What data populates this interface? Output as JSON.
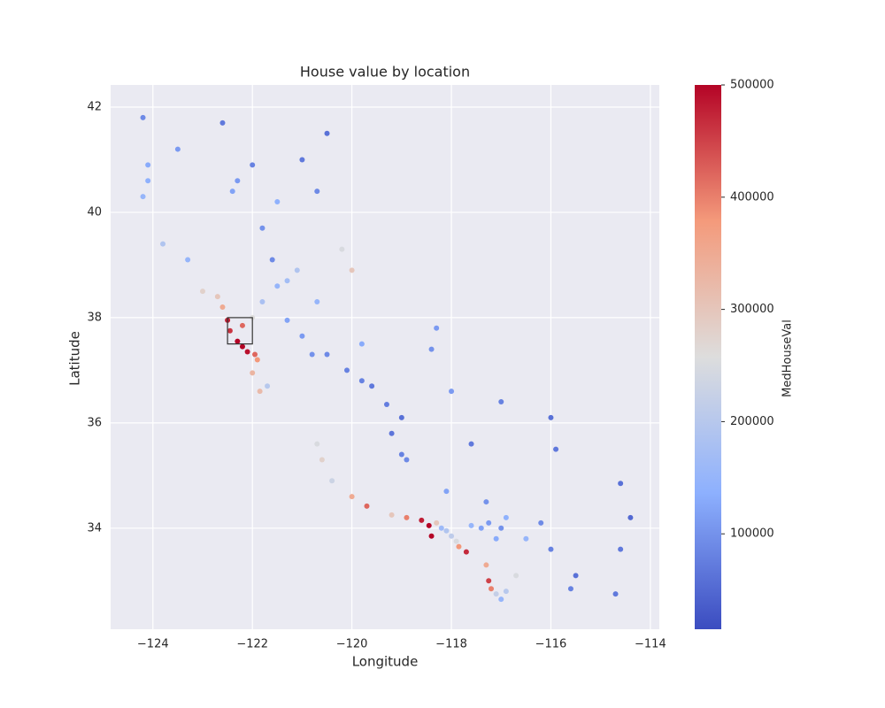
{
  "chart_data": {
    "type": "scatter",
    "title": "House value by location",
    "x_label": "Longitude",
    "y_label": "Latitude",
    "colorbar_label": "MedHouseVal",
    "colormap": "coolwarm",
    "grid": true,
    "xlim": [
      -124.85,
      -113.82
    ],
    "ylim": [
      32.08,
      42.42
    ],
    "xticks": [
      {
        "value": -124,
        "label": "−124"
      },
      {
        "value": -122,
        "label": "−122"
      },
      {
        "value": -120,
        "label": "−120"
      },
      {
        "value": -118,
        "label": "−118"
      },
      {
        "value": -116,
        "label": "−116"
      },
      {
        "value": -114,
        "label": "−114"
      }
    ],
    "yticks": [
      34,
      36,
      38,
      40,
      42
    ],
    "clim": [
      14999,
      500001
    ],
    "cticks": [
      100000,
      200000,
      300000,
      400000,
      500000
    ],
    "rectangle": {
      "x": [
        -122.5,
        -122.0
      ],
      "y": [
        37.5,
        38.0
      ]
    },
    "x": [
      -124.2,
      -124.1,
      -124.1,
      -124.2,
      -123.8,
      -123.3,
      -123.0,
      -122.7,
      -122.6,
      -122.5,
      -122.45,
      -122.3,
      -122.2,
      -122.1,
      -121.95,
      -121.9,
      -122.0,
      -121.85,
      -121.7,
      -122.2,
      -122.0,
      -121.8,
      -121.5,
      -121.3,
      -121.1,
      -121.6,
      -121.8,
      -122.3,
      -122.4,
      -122.0,
      -121.0,
      -120.5,
      -122.6,
      -123.5,
      -120.2,
      -120.0,
      -120.7,
      -121.3,
      -121.0,
      -120.8,
      -120.5,
      -120.1,
      -119.8,
      -119.6,
      -119.3,
      -119.0,
      -119.2,
      -119.0,
      -118.9,
      -119.8,
      -118.4,
      -117.6,
      -118.1,
      -117.3,
      -120.7,
      -120.6,
      -120.4,
      -120.0,
      -119.7,
      -119.2,
      -118.9,
      -118.6,
      -118.45,
      -118.4,
      -118.3,
      -118.2,
      -118.1,
      -118.0,
      -117.9,
      -117.85,
      -117.7,
      -117.6,
      -117.4,
      -117.25,
      -117.1,
      -117.0,
      -116.9,
      -116.5,
      -116.2,
      -116.0,
      -117.3,
      -117.25,
      -117.2,
      -117.1,
      -117.0,
      -116.9,
      -116.7,
      -115.6,
      -115.5,
      -114.7,
      -114.6,
      -114.6,
      -114.4,
      -115.9,
      -116.0,
      -117.0,
      -118.0,
      -118.3,
      -120.7,
      -121.5
    ],
    "y": [
      41.8,
      40.9,
      40.6,
      40.3,
      39.4,
      39.1,
      38.5,
      38.4,
      38.2,
      37.95,
      37.75,
      37.55,
      37.45,
      37.35,
      37.3,
      37.2,
      36.95,
      36.6,
      36.7,
      37.85,
      38.0,
      38.3,
      38.6,
      38.7,
      38.9,
      39.1,
      39.7,
      40.6,
      40.4,
      40.9,
      41.0,
      41.5,
      41.7,
      41.2,
      39.3,
      38.9,
      38.3,
      37.95,
      37.65,
      37.3,
      37.3,
      37.0,
      36.8,
      36.7,
      36.35,
      36.1,
      35.8,
      35.4,
      35.3,
      37.5,
      37.4,
      35.6,
      34.7,
      34.5,
      35.6,
      35.3,
      34.9,
      34.6,
      34.42,
      34.25,
      34.2,
      34.15,
      34.05,
      33.85,
      34.1,
      34.0,
      33.95,
      33.85,
      33.75,
      33.65,
      33.55,
      34.05,
      34.0,
      34.1,
      33.8,
      34.0,
      34.2,
      33.8,
      34.1,
      33.6,
      33.3,
      33.0,
      32.85,
      32.75,
      32.65,
      32.8,
      33.1,
      32.85,
      33.1,
      32.75,
      33.6,
      34.85,
      34.2,
      35.5,
      36.1,
      36.4,
      36.6,
      37.8,
      40.4,
      40.2
    ],
    "values": [
      90000,
      130000,
      140000,
      150000,
      190000,
      150000,
      280000,
      300000,
      350000,
      480000,
      460000,
      500000,
      500000,
      490000,
      420000,
      380000,
      330000,
      320000,
      200000,
      420000,
      260000,
      180000,
      150000,
      170000,
      190000,
      90000,
      100000,
      110000,
      120000,
      80000,
      70000,
      60000,
      70000,
      110000,
      250000,
      300000,
      150000,
      120000,
      110000,
      100000,
      90000,
      80000,
      80000,
      70000,
      75000,
      60000,
      65000,
      80000,
      90000,
      130000,
      100000,
      70000,
      120000,
      100000,
      250000,
      280000,
      230000,
      350000,
      420000,
      300000,
      400000,
      480000,
      500000,
      500000,
      300000,
      160000,
      190000,
      210000,
      250000,
      380000,
      470000,
      150000,
      120000,
      110000,
      130000,
      100000,
      140000,
      150000,
      90000,
      80000,
      350000,
      450000,
      400000,
      220000,
      150000,
      200000,
      250000,
      80000,
      60000,
      70000,
      70000,
      60000,
      50000,
      70000,
      60000,
      80000,
      110000,
      110000,
      90000,
      140000
    ]
  }
}
